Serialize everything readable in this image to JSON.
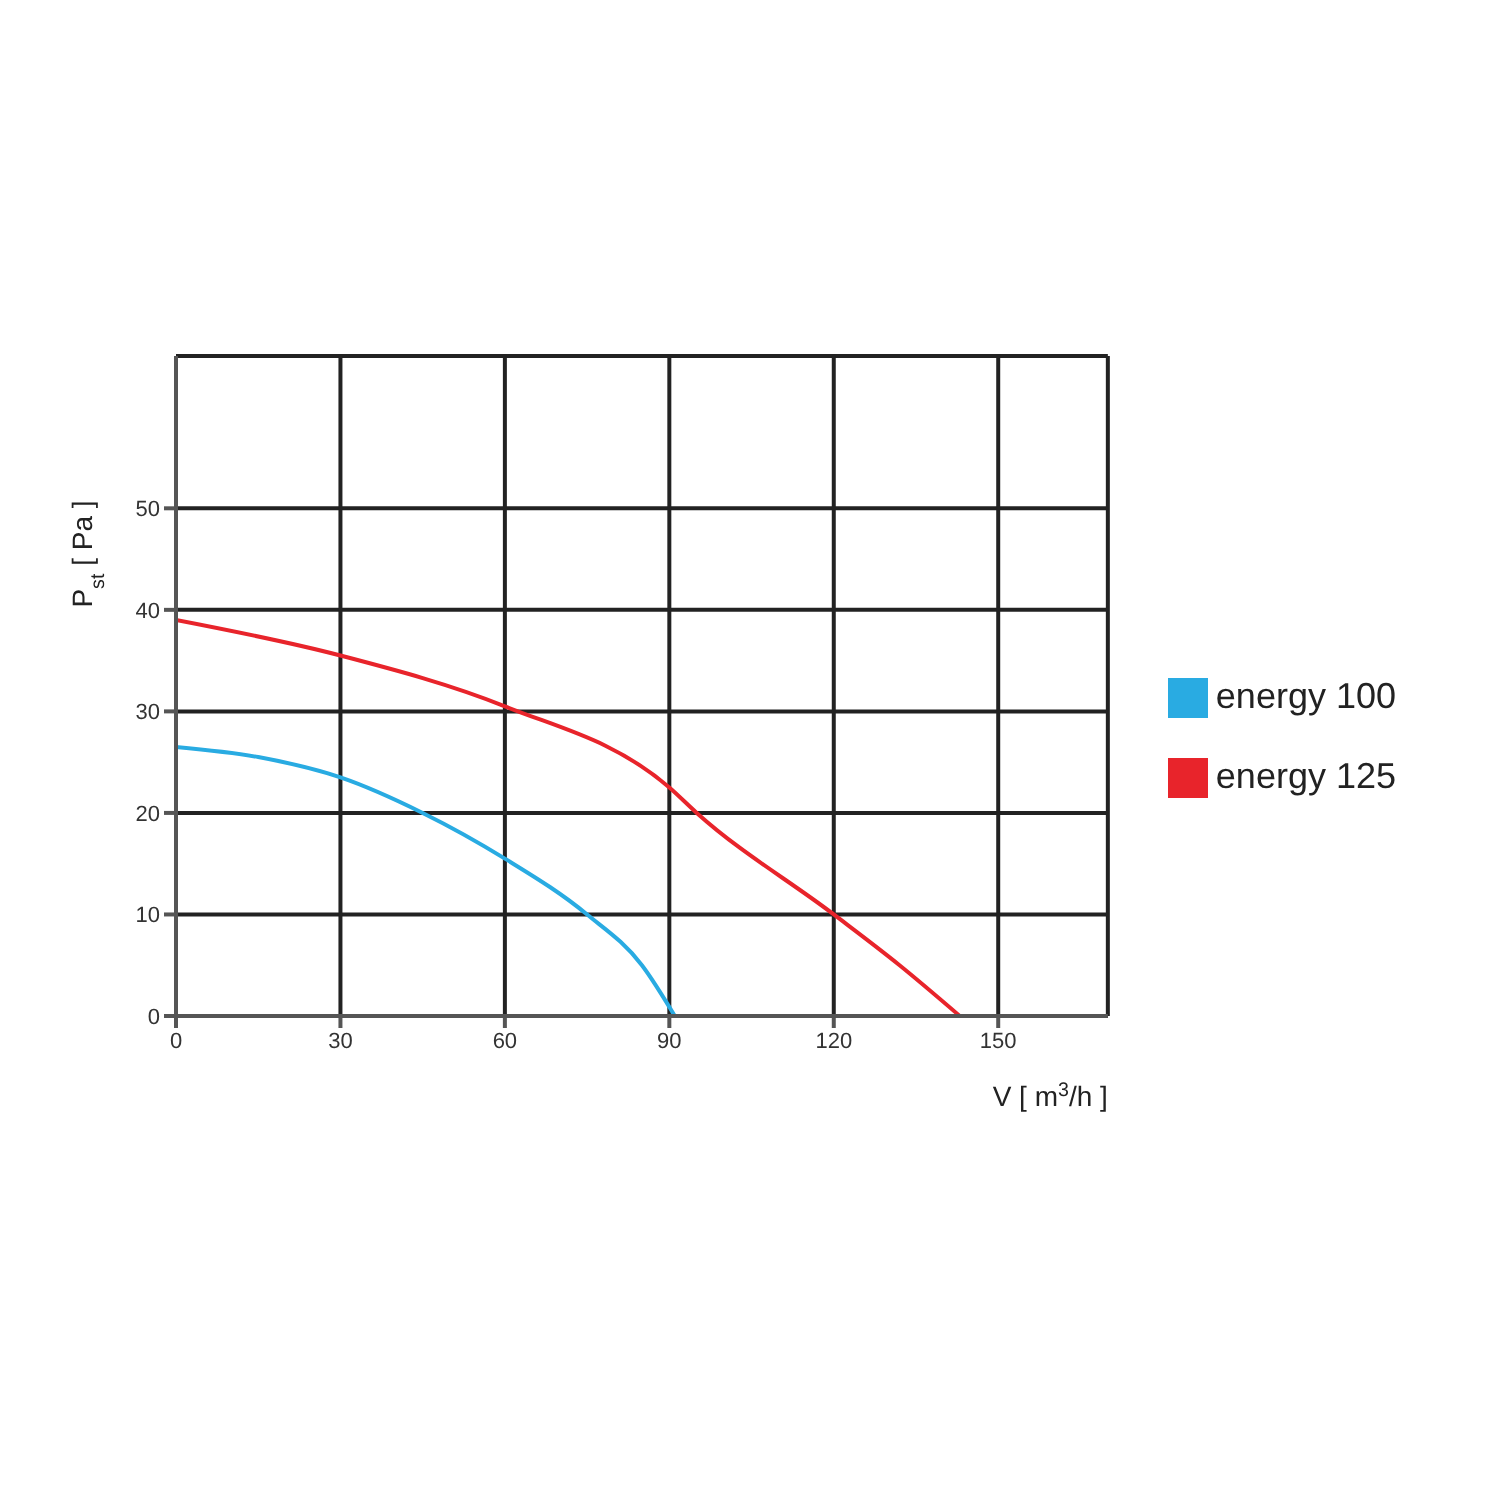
{
  "chart_data": {
    "type": "line",
    "xlabel": "V [ m$^{3}$/h ]",
    "ylabel": "P$_{st}$ [ Pa ]",
    "xlim": [
      0,
      170
    ],
    "xticks": [
      0,
      30,
      60,
      90,
      120,
      150
    ],
    "ylim": [
      0,
      65
    ],
    "yticks": [
      0,
      10,
      20,
      30,
      40,
      50
    ],
    "grid": true,
    "legend": "right",
    "marker": "none",
    "line_style": "solid",
    "series": [
      {
        "name": "energy 100",
        "color": "#29abe2",
        "x": [
          0,
          15,
          30,
          45,
          60,
          75,
          85,
          91
        ],
        "values": [
          26.5,
          25.5,
          23.5,
          20,
          15.5,
          10,
          5,
          0
        ]
      },
      {
        "name": "energy 125",
        "color": "#e8242b",
        "x": [
          0,
          30,
          60,
          90,
          95,
          120,
          132,
          143
        ],
        "values": [
          39,
          35.5,
          30.5,
          22.5,
          20,
          10,
          5,
          0
        ]
      }
    ]
  }
}
